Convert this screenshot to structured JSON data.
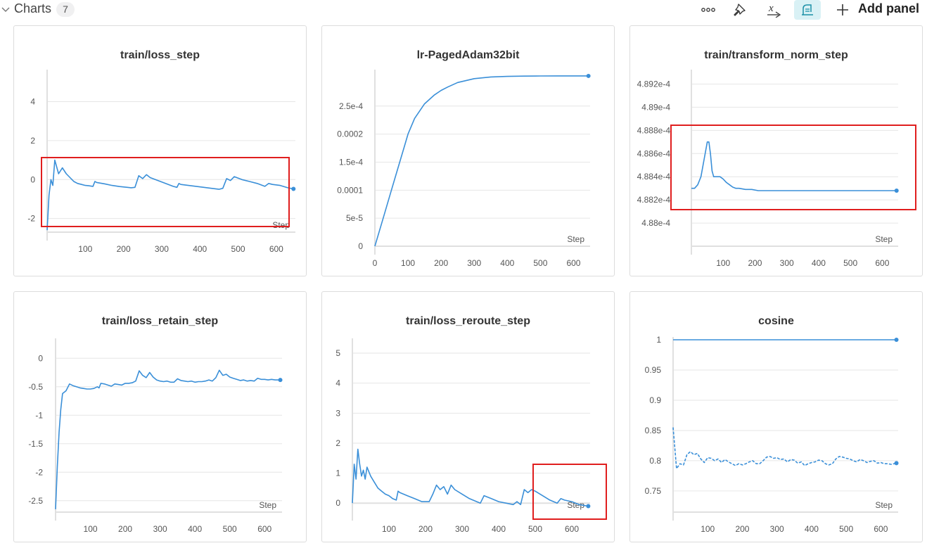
{
  "section": {
    "title": "Charts",
    "count": "7"
  },
  "toolbar": {
    "icons": [
      "more-icon",
      "pin-icon",
      "function-icon",
      "paint-icon",
      "plus-icon"
    ],
    "add_panel_label": "Add panel"
  },
  "colors": {
    "line": "#3a8fd8",
    "highlight": "#e01e1e",
    "grid": "#e6e6e6",
    "active_tool_bg": "#d9f1f5"
  },
  "chart_data": [
    {
      "title": "train/loss_step",
      "type": "line",
      "xlabel": "Step",
      "xlim": [
        0,
        650
      ],
      "ylim": [
        -2.7,
        5.5
      ],
      "xticks": [
        100,
        200,
        300,
        400,
        500,
        600
      ],
      "yticks": [
        -2,
        0,
        2,
        4
      ],
      "yticklabels": [
        "-2",
        "0",
        "2",
        "4"
      ],
      "series": [
        {
          "style": "solid",
          "endpoint": true,
          "x": [
            0,
            5,
            10,
            15,
            20,
            30,
            40,
            50,
            60,
            70,
            80,
            90,
            100,
            110,
            120,
            125,
            130,
            150,
            170,
            190,
            210,
            220,
            230,
            240,
            250,
            260,
            270,
            290,
            310,
            330,
            340,
            345,
            350,
            370,
            390,
            410,
            430,
            450,
            460,
            470,
            480,
            490,
            510,
            530,
            550,
            570,
            580,
            590,
            610,
            630,
            645
          ],
          "y": [
            -2.6,
            -0.8,
            0,
            -0.3,
            1.0,
            0.3,
            0.6,
            0.3,
            0.1,
            -0.1,
            -0.2,
            -0.25,
            -0.3,
            -0.32,
            -0.35,
            -0.1,
            -0.15,
            -0.22,
            -0.3,
            -0.36,
            -0.4,
            -0.42,
            -0.4,
            0.2,
            0.05,
            0.25,
            0.1,
            -0.05,
            -0.2,
            -0.35,
            -0.4,
            -0.2,
            -0.25,
            -0.3,
            -0.35,
            -0.4,
            -0.45,
            -0.5,
            -0.45,
            0.05,
            -0.05,
            0.15,
            0.0,
            -0.1,
            -0.2,
            -0.35,
            -0.2,
            -0.25,
            -0.3,
            -0.42,
            -0.48
          ]
        }
      ]
    },
    {
      "title": "lr-PagedAdam32bit",
      "type": "line",
      "xlabel": "Step",
      "xlim": [
        0,
        650
      ],
      "ylim": [
        0,
        0.00031
      ],
      "xticks": [
        0,
        100,
        200,
        300,
        400,
        500,
        600
      ],
      "yticks": [
        0,
        5e-05,
        0.0001,
        0.00015,
        0.0002,
        0.00025
      ],
      "yticklabels": [
        "0",
        "5e-5",
        "0.0001",
        "1.5e-4",
        "0.0002",
        "2.5e-4"
      ],
      "series": [
        {
          "style": "solid",
          "endpoint": true,
          "x": [
            0,
            25,
            50,
            75,
            90,
            100,
            120,
            150,
            180,
            200,
            220,
            250,
            300,
            350,
            400,
            450,
            500,
            550,
            600,
            645
          ],
          "y": [
            0,
            5e-05,
            0.0001,
            0.00015,
            0.00018,
            0.0002,
            0.000228,
            0.000254,
            0.00027,
            0.000278,
            0.000284,
            0.000292,
            0.000299,
            0.000302,
            0.000303,
            0.0003035,
            0.0003037,
            0.0003038,
            0.0003038,
            0.0003038
          ]
        }
      ]
    },
    {
      "title": "train/transform_norm_step",
      "type": "line",
      "xlabel": "Step",
      "xlim": [
        0,
        650
      ],
      "ylim": [
        0.0004878,
        0.0004893
      ],
      "xticks": [
        100,
        200,
        300,
        400,
        500,
        600
      ],
      "yticks": [
        0.000488,
        0.0004882,
        0.0004884,
        0.0004886,
        0.0004888,
        0.000489,
        0.0004892
      ],
      "yticklabels": [
        "4.88e-4",
        "4.882e-4",
        "4.884e-4",
        "4.886e-4",
        "4.888e-4",
        "4.89e-4",
        "4.892e-4"
      ],
      "series": [
        {
          "style": "solid",
          "endpoint": true,
          "x": [
            0,
            10,
            20,
            30,
            40,
            50,
            55,
            60,
            65,
            70,
            75,
            80,
            85,
            90,
            100,
            110,
            120,
            130,
            140,
            150,
            170,
            190,
            210,
            230,
            260,
            300,
            350,
            400,
            450,
            500,
            550,
            600,
            645
          ],
          "y": [
            0.0004883,
            0.0004883,
            0.00048833,
            0.0004884,
            0.00048855,
            0.0004887,
            0.0004887,
            0.0004886,
            0.00048845,
            0.0004884,
            0.0004884,
            0.0004884,
            0.0004884,
            0.0004884,
            0.00048838,
            0.00048835,
            0.00048833,
            0.00048831,
            0.0004883,
            0.0004883,
            0.00048829,
            0.00048829,
            0.00048828,
            0.00048828,
            0.00048828,
            0.00048828,
            0.00048828,
            0.00048828,
            0.00048828,
            0.00048828,
            0.00048828,
            0.00048828,
            0.00048828
          ]
        }
      ]
    },
    {
      "title": "train/loss_retain_step",
      "type": "line",
      "xlabel": "Step",
      "xlim": [
        0,
        650
      ],
      "ylim": [
        -2.7,
        0.3
      ],
      "xticks": [
        100,
        200,
        300,
        400,
        500,
        600
      ],
      "yticks": [
        -2.5,
        -2,
        -1.5,
        -1,
        -0.5,
        0
      ],
      "yticklabels": [
        "-2.5",
        "-2",
        "-1.5",
        "-1",
        "-0.5",
        "0"
      ],
      "series": [
        {
          "style": "solid",
          "endpoint": true,
          "x": [
            0,
            5,
            10,
            15,
            20,
            30,
            40,
            50,
            60,
            70,
            80,
            90,
            100,
            110,
            120,
            125,
            130,
            140,
            150,
            160,
            170,
            180,
            190,
            200,
            210,
            220,
            230,
            240,
            250,
            260,
            270,
            280,
            290,
            300,
            310,
            320,
            330,
            340,
            350,
            360,
            370,
            380,
            390,
            400,
            410,
            420,
            430,
            440,
            450,
            460,
            470,
            480,
            490,
            500,
            510,
            520,
            530,
            540,
            550,
            560,
            570,
            580,
            590,
            600,
            610,
            620,
            630,
            645
          ],
          "y": [
            -2.65,
            -1.9,
            -1.3,
            -0.9,
            -0.62,
            -0.57,
            -0.45,
            -0.48,
            -0.5,
            -0.52,
            -0.53,
            -0.54,
            -0.54,
            -0.53,
            -0.5,
            -0.52,
            -0.44,
            -0.45,
            -0.47,
            -0.49,
            -0.45,
            -0.46,
            -0.47,
            -0.44,
            -0.44,
            -0.43,
            -0.4,
            -0.22,
            -0.3,
            -0.34,
            -0.25,
            -0.33,
            -0.38,
            -0.4,
            -0.41,
            -0.4,
            -0.42,
            -0.42,
            -0.36,
            -0.39,
            -0.4,
            -0.41,
            -0.4,
            -0.42,
            -0.41,
            -0.41,
            -0.4,
            -0.38,
            -0.4,
            -0.34,
            -0.21,
            -0.3,
            -0.28,
            -0.33,
            -0.35,
            -0.37,
            -0.39,
            -0.38,
            -0.4,
            -0.39,
            -0.4,
            -0.35,
            -0.37,
            -0.37,
            -0.38,
            -0.37,
            -0.38,
            -0.38
          ]
        }
      ]
    },
    {
      "title": "train/loss_reroute_step",
      "type": "line",
      "xlabel": "Step",
      "xlim": [
        0,
        650
      ],
      "ylim": [
        -0.3,
        5.4
      ],
      "xticks": [
        100,
        200,
        300,
        400,
        500,
        600
      ],
      "yticks": [
        0,
        1,
        2,
        3,
        4,
        5
      ],
      "yticklabels": [
        "0",
        "1",
        "2",
        "3",
        "4",
        "5"
      ],
      "series": [
        {
          "style": "solid",
          "endpoint": true,
          "x": [
            0,
            5,
            10,
            15,
            20,
            25,
            30,
            35,
            40,
            50,
            60,
            70,
            80,
            90,
            100,
            110,
            120,
            125,
            130,
            150,
            170,
            190,
            200,
            210,
            220,
            230,
            240,
            250,
            260,
            270,
            280,
            300,
            320,
            340,
            350,
            360,
            380,
            400,
            420,
            440,
            450,
            460,
            470,
            480,
            490,
            500,
            520,
            540,
            560,
            570,
            580,
            600,
            620,
            645
          ],
          "y": [
            0,
            1.3,
            0.8,
            1.8,
            1.3,
            0.9,
            1.1,
            0.8,
            1.2,
            0.9,
            0.7,
            0.5,
            0.4,
            0.3,
            0.25,
            0.15,
            0.1,
            0.4,
            0.35,
            0.25,
            0.15,
            0.05,
            0.05,
            0.05,
            0.3,
            0.6,
            0.45,
            0.55,
            0.3,
            0.6,
            0.45,
            0.3,
            0.15,
            0.05,
            0.0,
            0.25,
            0.15,
            0.05,
            0.0,
            -0.05,
            0.05,
            -0.05,
            0.45,
            0.35,
            0.45,
            0.4,
            0.25,
            0.1,
            0.0,
            0.15,
            0.1,
            0.05,
            -0.05,
            -0.1
          ]
        }
      ]
    },
    {
      "title": "cosine",
      "type": "line",
      "xlabel": "Step",
      "xlim": [
        0,
        650
      ],
      "ylim": [
        0.715,
        1.0
      ],
      "xticks": [
        100,
        200,
        300,
        400,
        500,
        600
      ],
      "yticks": [
        0.75,
        0.8,
        0.85,
        0.9,
        0.95,
        1.0
      ],
      "yticklabels": [
        "0.75",
        "0.8",
        "0.85",
        "0.9",
        "0.95",
        "1"
      ],
      "series": [
        {
          "style": "solid",
          "endpoint": true,
          "x": [
            0,
            100,
            200,
            300,
            400,
            500,
            600,
            645
          ],
          "y": [
            1.0,
            1.0,
            1.0,
            1.0,
            1.0,
            1.0,
            1.0,
            1.0
          ]
        },
        {
          "style": "dashed",
          "endpoint": true,
          "x": [
            0,
            10,
            20,
            30,
            40,
            50,
            60,
            70,
            80,
            90,
            100,
            110,
            120,
            130,
            140,
            150,
            160,
            170,
            180,
            190,
            200,
            210,
            220,
            230,
            240,
            250,
            260,
            270,
            280,
            290,
            300,
            310,
            320,
            330,
            340,
            350,
            360,
            370,
            380,
            390,
            400,
            410,
            420,
            430,
            440,
            450,
            460,
            470,
            480,
            490,
            500,
            510,
            520,
            530,
            540,
            550,
            560,
            570,
            580,
            590,
            600,
            610,
            620,
            630,
            645
          ],
          "y": [
            0.855,
            0.787,
            0.795,
            0.793,
            0.81,
            0.815,
            0.81,
            0.812,
            0.803,
            0.797,
            0.805,
            0.804,
            0.8,
            0.803,
            0.797,
            0.802,
            0.798,
            0.795,
            0.792,
            0.795,
            0.793,
            0.795,
            0.798,
            0.8,
            0.795,
            0.795,
            0.8,
            0.806,
            0.807,
            0.804,
            0.805,
            0.802,
            0.803,
            0.798,
            0.802,
            0.801,
            0.796,
            0.798,
            0.792,
            0.795,
            0.797,
            0.798,
            0.801,
            0.8,
            0.795,
            0.793,
            0.795,
            0.803,
            0.807,
            0.806,
            0.804,
            0.803,
            0.8,
            0.798,
            0.802,
            0.8,
            0.797,
            0.799,
            0.8,
            0.796,
            0.797,
            0.795,
            0.795,
            0.794,
            0.796
          ]
        }
      ]
    }
  ]
}
